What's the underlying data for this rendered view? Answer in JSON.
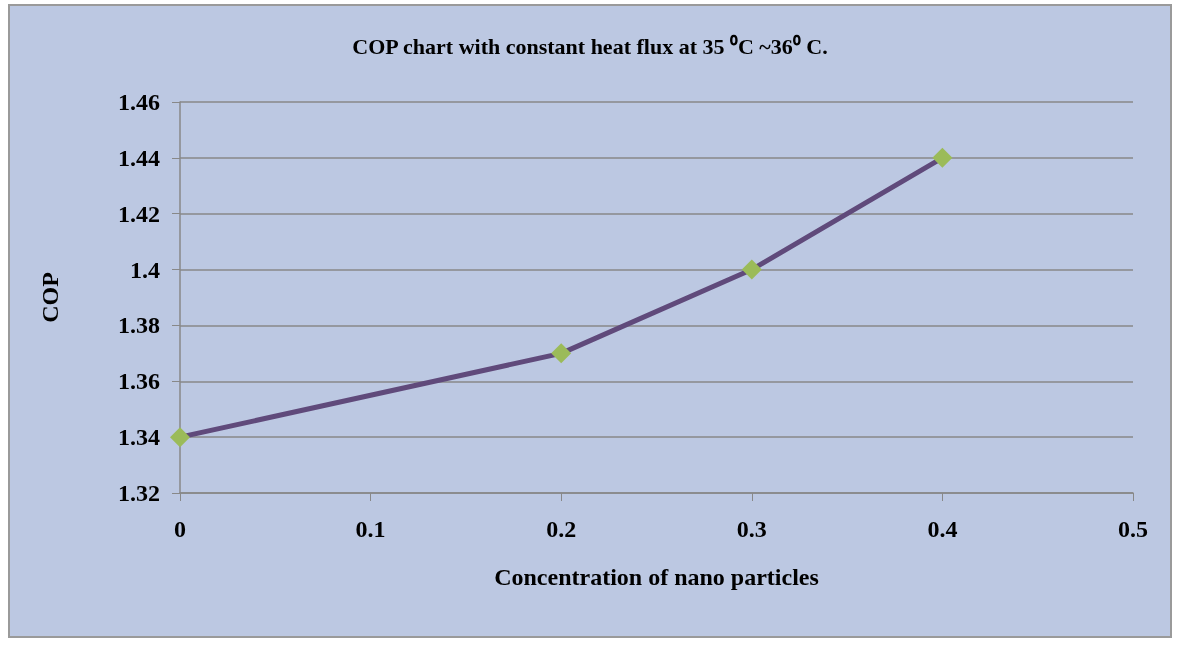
{
  "chart_data": {
    "type": "line",
    "title": "COP chart with constant heat flux at 35 ⁰C ~36⁰ C.",
    "xlabel": "Concentration of nano particles",
    "ylabel": "COP",
    "x": [
      0,
      0.2,
      0.3,
      0.4
    ],
    "series": [
      {
        "color": "#604a7b",
        "colors": [
          "#9bbb59",
          "#9bbb59",
          "#9bbb59",
          "#9bbb59"
        ],
        "values": [
          1.34,
          1.37,
          1.4,
          1.44
        ]
      }
    ],
    "xlim": [
      0,
      0.5
    ],
    "xticks": [
      0,
      0.1,
      0.2,
      0.3,
      0.4,
      0.5
    ],
    "ylim": [
      1.32,
      1.46
    ],
    "yticks": [
      1.32,
      1.34,
      1.36,
      1.38,
      1.4,
      1.42,
      1.44,
      1.46
    ],
    "grid": "y",
    "marker": "diamond",
    "line_style": "solid"
  }
}
